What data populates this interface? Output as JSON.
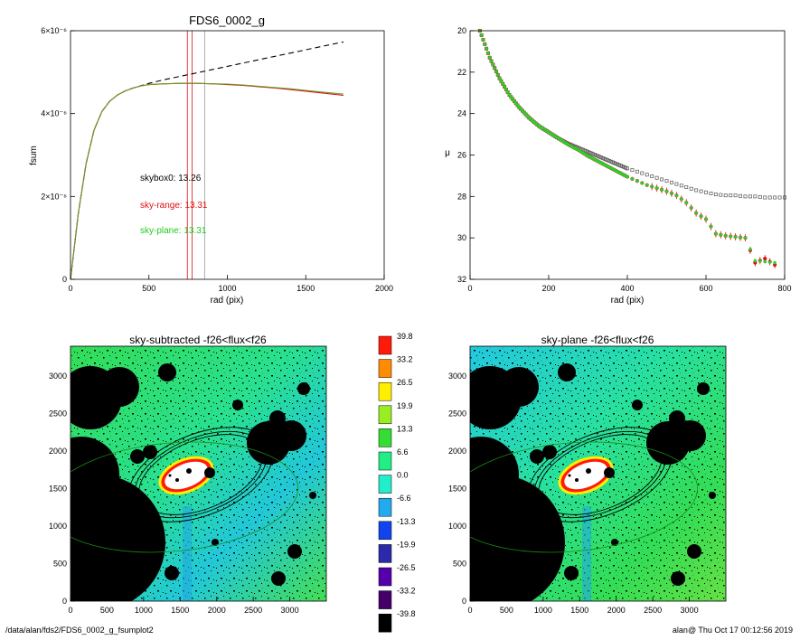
{
  "chart_data": [
    {
      "type": "line",
      "title": "FDS6_0002_g",
      "xlabel": "rad (pix)",
      "ylabel": "fsum",
      "xlim": [
        0,
        2000
      ],
      "ylim": [
        0,
        6e-06
      ],
      "xticks": [
        {
          "v": 0,
          "label": "0"
        },
        {
          "v": 500,
          "label": "500"
        },
        {
          "v": 1000,
          "label": "1000"
        },
        {
          "v": 1500,
          "label": "1500"
        },
        {
          "v": 2000,
          "label": "2000"
        }
      ],
      "yticks": [
        {
          "v": 0,
          "label": "0"
        },
        {
          "v": 2e-06,
          "label": "2×10⁻⁶"
        },
        {
          "v": 4e-06,
          "label": "4×10⁻⁶"
        },
        {
          "v": 6e-06,
          "label": "6×10⁻⁶"
        }
      ],
      "annotations": [
        {
          "text": "skybox0: 13.26",
          "color": "#000000",
          "x": 440,
          "y": 2.5e-06
        },
        {
          "text": "sky-range: 13.31",
          "color": "#e01010",
          "x": 440,
          "y": 1.85e-06
        },
        {
          "text": "sky-plane: 13.31",
          "color": "#22cc22",
          "x": 440,
          "y": 1.23e-06
        }
      ],
      "vlines": [
        {
          "x": 745,
          "color": "#e01010"
        },
        {
          "x": 775,
          "color": "#e01010"
        },
        {
          "x": 855,
          "color": "#999999"
        }
      ],
      "series": [
        {
          "color": "#000000",
          "dash": true,
          "x": [
            0,
            50,
            100,
            150,
            200,
            250,
            300,
            350,
            400,
            500,
            600,
            700,
            800,
            900,
            1000,
            1100,
            1200,
            1300,
            1400,
            1500,
            1600,
            1740
          ],
          "y": [
            0,
            1.6e-06,
            2.8e-06,
            3.6e-06,
            4.05e-06,
            4.3e-06,
            4.45e-06,
            4.55e-06,
            4.62e-06,
            4.73e-06,
            4.82e-06,
            4.9e-06,
            4.98e-06,
            5.06e-06,
            5.14e-06,
            5.22e-06,
            5.3e-06,
            5.38e-06,
            5.46e-06,
            5.54e-06,
            5.62e-06,
            5.73e-06
          ]
        },
        {
          "color": "#e01010",
          "dash": false,
          "x": [
            0,
            50,
            100,
            150,
            200,
            250,
            300,
            350,
            400,
            450,
            500,
            600,
            700,
            800,
            900,
            1000,
            1100,
            1200,
            1300,
            1400,
            1500,
            1600,
            1740
          ],
          "y": [
            0,
            1.6e-06,
            2.8e-06,
            3.6e-06,
            4.05e-06,
            4.3e-06,
            4.45e-06,
            4.55e-06,
            4.62e-06,
            4.67e-06,
            4.7e-06,
            4.72e-06,
            4.73e-06,
            4.73e-06,
            4.72e-06,
            4.7e-06,
            4.68e-06,
            4.65e-06,
            4.62e-06,
            4.58e-06,
            4.54e-06,
            4.5e-06,
            4.44e-06
          ]
        },
        {
          "color": "#6a9a2a",
          "dash": false,
          "x": [
            0,
            50,
            100,
            150,
            200,
            250,
            300,
            350,
            400,
            450,
            500,
            600,
            700,
            800,
            900,
            1000,
            1100,
            1200,
            1300,
            1400,
            1500,
            1600,
            1740
          ],
          "y": [
            0,
            1.6e-06,
            2.8e-06,
            3.6e-06,
            4.05e-06,
            4.3e-06,
            4.45e-06,
            4.55e-06,
            4.62e-06,
            4.67e-06,
            4.7e-06,
            4.72e-06,
            4.73e-06,
            4.73e-06,
            4.72e-06,
            4.71e-06,
            4.69e-06,
            4.66e-06,
            4.63e-06,
            4.6e-06,
            4.56e-06,
            4.52e-06,
            4.47e-06
          ]
        }
      ]
    },
    {
      "type": "scatter",
      "title": "",
      "xlabel": "rad (pix)",
      "ylabel": "μ",
      "xlim": [
        0,
        800
      ],
      "ylim": [
        32,
        20
      ],
      "xticks": [
        {
          "v": 0,
          "label": "0"
        },
        {
          "v": 200,
          "label": "200"
        },
        {
          "v": 400,
          "label": "400"
        },
        {
          "v": 600,
          "label": "600"
        },
        {
          "v": 800,
          "label": "800"
        }
      ],
      "yticks": [
        {
          "v": 20,
          "label": "20"
        },
        {
          "v": 22,
          "label": "22"
        },
        {
          "v": 24,
          "label": "24"
        },
        {
          "v": 26,
          "label": "26"
        },
        {
          "v": 28,
          "label": "28"
        },
        {
          "v": 30,
          "label": "30"
        },
        {
          "v": 32,
          "label": "32"
        }
      ],
      "profile_x": [
        25,
        50,
        75,
        100,
        125,
        150,
        175,
        200,
        225,
        250,
        275,
        300,
        325,
        350,
        375,
        400,
        425,
        450,
        475,
        500,
        525,
        550,
        575,
        600,
        625,
        650,
        675,
        700,
        725,
        750,
        775,
        800
      ],
      "series": [
        {
          "color": "#555555",
          "marker": "square-open",
          "y": [
            20.0,
            21.3,
            22.3,
            23.1,
            23.7,
            24.2,
            24.6,
            24.9,
            25.2,
            25.45,
            25.65,
            25.85,
            26.05,
            26.25,
            26.45,
            26.65,
            26.8,
            26.95,
            27.1,
            27.25,
            27.4,
            27.55,
            27.7,
            27.8,
            27.9,
            27.95,
            27.95,
            28.0,
            28.0,
            28.05,
            28.05,
            28.05
          ]
        },
        {
          "color": "#e01010",
          "marker": "dot-error",
          "y": [
            20.0,
            21.3,
            22.3,
            23.1,
            23.7,
            24.2,
            24.6,
            24.9,
            25.2,
            25.5,
            25.75,
            26.05,
            26.3,
            26.55,
            26.8,
            27.05,
            27.25,
            27.45,
            27.6,
            27.75,
            27.95,
            28.3,
            28.8,
            29.1,
            29.8,
            29.9,
            29.95,
            30.0,
            31.2,
            31.0,
            31.3,
            null
          ]
        },
        {
          "color": "#2fcc2f",
          "marker": "dot",
          "y": [
            20.0,
            21.3,
            22.3,
            23.1,
            23.7,
            24.2,
            24.6,
            24.9,
            25.2,
            25.5,
            25.75,
            26.05,
            26.3,
            26.55,
            26.8,
            27.05,
            27.25,
            27.45,
            27.6,
            27.75,
            27.95,
            28.3,
            28.8,
            29.1,
            29.8,
            29.9,
            29.95,
            30.0,
            31.1,
            31.15,
            31.2,
            null
          ]
        }
      ]
    },
    {
      "type": "heatmap",
      "title": "sky-subtracted -f26<flux<f26",
      "xlim": [
        0,
        3500
      ],
      "ylim": [
        0,
        3400
      ],
      "xticks": [
        {
          "v": 0,
          "label": "0"
        },
        {
          "v": 500,
          "label": "500"
        },
        {
          "v": 1000,
          "label": "1000"
        },
        {
          "v": 1500,
          "label": "1500"
        },
        {
          "v": 2000,
          "label": "2000"
        },
        {
          "v": 2500,
          "label": "2500"
        },
        {
          "v": 3000,
          "label": "3000"
        }
      ],
      "yticks": [
        {
          "v": 0,
          "label": "0"
        },
        {
          "v": 500,
          "label": "500"
        },
        {
          "v": 1000,
          "label": "1000"
        },
        {
          "v": 1500,
          "label": "1500"
        },
        {
          "v": 2000,
          "label": "2000"
        },
        {
          "v": 2500,
          "label": "2500"
        },
        {
          "v": 3000,
          "label": "3000"
        }
      ]
    },
    {
      "type": "heatmap",
      "title": "sky-plane -f26<flux<f26",
      "xlim": [
        0,
        3500
      ],
      "ylim": [
        0,
        3400
      ],
      "xticks": [
        {
          "v": 0,
          "label": "0"
        },
        {
          "v": 500,
          "label": "500"
        },
        {
          "v": 1000,
          "label": "1000"
        },
        {
          "v": 1500,
          "label": "1500"
        },
        {
          "v": 2000,
          "label": "2000"
        },
        {
          "v": 2500,
          "label": "2500"
        },
        {
          "v": 3000,
          "label": "3000"
        }
      ],
      "yticks": [
        {
          "v": 0,
          "label": "0"
        },
        {
          "v": 500,
          "label": "500"
        },
        {
          "v": 1000,
          "label": "1000"
        },
        {
          "v": 1500,
          "label": "1500"
        },
        {
          "v": 2000,
          "label": "2000"
        },
        {
          "v": 2500,
          "label": "2500"
        },
        {
          "v": 3000,
          "label": "3000"
        }
      ]
    }
  ],
  "colorbar": {
    "labels": [
      "39.8",
      "33.2",
      "26.5",
      "19.9",
      "13.3",
      "6.6",
      "0.0",
      "-6.6",
      "-13.3",
      "-19.9",
      "-26.5",
      "-33.2",
      "-39.8"
    ],
    "colors": [
      "#ff1a0a",
      "#ff8c00",
      "#ffee00",
      "#99ee22",
      "#33dd33",
      "#22ee88",
      "#22eecc",
      "#22aaee",
      "#1144ee",
      "#2a2aaa",
      "#5500aa",
      "#440066",
      "#000000"
    ]
  },
  "footer": {
    "left": "/data/alan/fds2/FDS6_0002_g_fsumplot2",
    "right": "alan@  Thu Oct 17 00:12:56 2019"
  }
}
